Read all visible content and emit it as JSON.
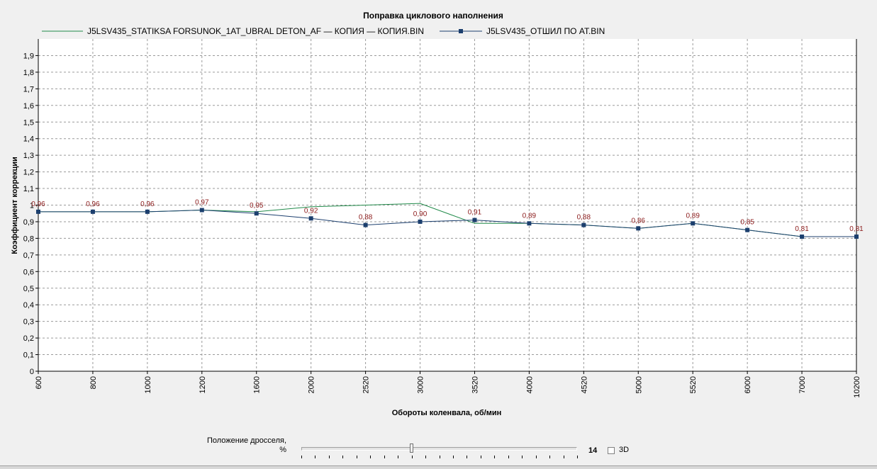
{
  "chart_data": {
    "type": "line",
    "title": "Поправка циклового наполнения",
    "xlabel": "Обороты коленвала, об/мин",
    "ylabel": "Коэффициент коррекции",
    "categories": [
      "600",
      "800",
      "1000",
      "1200",
      "1600",
      "2000",
      "2520",
      "3000",
      "3520",
      "4000",
      "4520",
      "5000",
      "5520",
      "6000",
      "7000",
      "10200"
    ],
    "ylim": [
      0,
      2.0
    ],
    "yticks": [
      "0",
      "0,1",
      "0,2",
      "0,3",
      "0,4",
      "0,5",
      "0,6",
      "0,7",
      "0,8",
      "0,9",
      "1",
      "1,1",
      "1,2",
      "1,3",
      "1,4",
      "1,5",
      "1,6",
      "1,7",
      "1,8",
      "1,9"
    ],
    "grid": true,
    "legend_position": "top",
    "series": [
      {
        "name": "J5LSV435_STATIKSA FORSUNOK_1AT_UBRAL DETON_AF — КОПИЯ — КОПИЯ.BIN",
        "color": "#218a4a",
        "markers": false,
        "values": [
          0.96,
          0.96,
          0.96,
          0.97,
          0.96,
          0.99,
          1.0,
          1.01,
          0.89,
          0.89,
          0.88,
          0.86,
          0.89,
          0.85,
          0.81,
          0.81
        ]
      },
      {
        "name": "J5LSV435_ОТШИЛ ПО AT.BIN",
        "color": "#1c3f6e",
        "markers": true,
        "values": [
          0.96,
          0.96,
          0.96,
          0.97,
          0.95,
          0.92,
          0.88,
          0.9,
          0.91,
          0.89,
          0.88,
          0.86,
          0.89,
          0.85,
          0.81,
          0.81
        ],
        "data_labels": [
          "0,96",
          "0,96",
          "0,96",
          "0,97",
          "0,95",
          "0,92",
          "0,88",
          "0,90",
          "0,91",
          "0,89",
          "0,88",
          "0,86",
          "0,89",
          "0,85",
          "0,81",
          "0,81"
        ]
      }
    ],
    "data_label_color": "#8b1a1a"
  },
  "controls": {
    "throttle_label_line1": "Положение дросселя,",
    "throttle_label_line2": "%",
    "throttle_value": "14",
    "throttle_fraction": 0.4,
    "checkbox_3d_label": "3D",
    "checkbox_3d_checked": false
  }
}
